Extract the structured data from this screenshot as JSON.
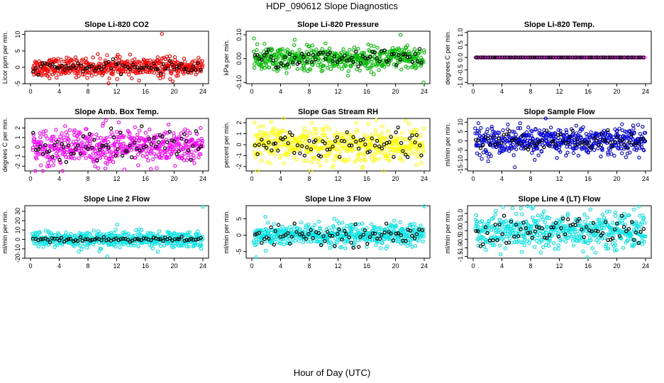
{
  "title": "HDP_090612  Slope Diagnostics",
  "xlabel": "Hour of Day (UTC)",
  "chart_data": [
    {
      "type": "scatter",
      "title": "Slope Li-820 CO2",
      "ylabel": "Licor ppm per min.",
      "xlim": [
        0,
        24
      ],
      "ylim": [
        -5,
        11
      ],
      "xticks": [
        0,
        4,
        8,
        12,
        16,
        20,
        24
      ],
      "yticks": [
        -5,
        0,
        5,
        10
      ],
      "color": "#ff0000",
      "spread": 1.4,
      "n": 520,
      "black_spread": 0.8,
      "outliers": [
        [
          18.3,
          10.2
        ],
        [
          19.8,
          -4.3
        ]
      ]
    },
    {
      "type": "scatter",
      "title": "Slope Li-820 Pressure",
      "ylabel": "kPa per min.",
      "xlim": [
        0,
        24
      ],
      "ylim": [
        -0.105,
        0.115
      ],
      "xticks": [
        0,
        4,
        8,
        12,
        16,
        20,
        24
      ],
      "yticks": [
        -0.1,
        0.0,
        0.1
      ],
      "ytick_labels": [
        "-0.10",
        "0.00",
        "0.10"
      ],
      "color": "#00bb00",
      "spread": 0.025,
      "n": 520,
      "black_spread": 0.018,
      "outliers": [
        [
          0.3,
          0.085
        ],
        [
          23.9,
          -0.1
        ],
        [
          20.7,
          0.1
        ]
      ]
    },
    {
      "type": "scatter",
      "title": "Slope Li-820 Temp.",
      "ylabel": "degrees C per min.",
      "xlim": [
        0,
        24
      ],
      "ylim": [
        -1.05,
        1.05
      ],
      "xticks": [
        0,
        4,
        8,
        12,
        16,
        20,
        24
      ],
      "yticks": [
        -1.0,
        -0.5,
        0.0,
        0.5,
        1.0
      ],
      "ytick_labels": [
        "-1.0",
        "-0.5",
        "0.0",
        "0.5",
        "1.0"
      ],
      "color": "#ff00ff",
      "spread": 0.0,
      "n": 160,
      "black_spread": 0.0,
      "outliers": []
    },
    {
      "type": "scatter",
      "title": "Slope Amb. Box Temp.",
      "ylabel": "degrees C per min.",
      "xlim": [
        0,
        24
      ],
      "ylim": [
        -2.5,
        3.0
      ],
      "xticks": [
        0,
        4,
        8,
        12,
        16,
        20,
        24
      ],
      "yticks": [
        -2,
        -1,
        0,
        1,
        2
      ],
      "color": "#ff00ff",
      "spread": 0.95,
      "n": 520,
      "black_spread": 0.9,
      "outliers": [
        [
          10.5,
          2.8
        ]
      ]
    },
    {
      "type": "scatter",
      "title": "Slope Gas Stream RH",
      "ylabel": "percent per min.",
      "xlim": [
        0,
        24
      ],
      "ylim": [
        -2.4,
        2.4
      ],
      "xticks": [
        0,
        4,
        8,
        12,
        16,
        20,
        24
      ],
      "yticks": [
        -2,
        -1,
        0,
        1,
        2
      ],
      "color": "#ffff00",
      "spread": 0.8,
      "n": 520,
      "black_spread": 0.75,
      "outliers": []
    },
    {
      "type": "scatter",
      "title": "Slope Sample Flow",
      "ylabel": "ml/min per min.",
      "xlim": [
        0,
        24
      ],
      "ylim": [
        -16,
        12
      ],
      "xticks": [
        0,
        4,
        8,
        12,
        16,
        20,
        24
      ],
      "yticks": [
        -15,
        -10,
        -5,
        0,
        5,
        10
      ],
      "color": "#0000dd",
      "spread": 3.6,
      "n": 520,
      "black_spread": 2.5,
      "outliers": [
        [
          5.8,
          -14
        ]
      ]
    },
    {
      "type": "scatter",
      "title": "Slope Line 2 Flow",
      "ylabel": "ml/min per min.",
      "xlim": [
        0,
        24
      ],
      "ylim": [
        -20,
        36
      ],
      "xticks": [
        0,
        4,
        8,
        12,
        16,
        20,
        24
      ],
      "yticks": [
        -20,
        -10,
        0,
        10,
        20,
        30
      ],
      "color": "#00e5e5",
      "spread": 4.2,
      "n": 520,
      "black_spread": 1.2,
      "outliers": [
        [
          24,
          35
        ],
        [
          10.7,
          -18
        ]
      ]
    },
    {
      "type": "scatter",
      "title": "Slope Line 3 Flow",
      "ylabel": "ml/min per min.",
      "xlim": [
        0,
        24
      ],
      "ylim": [
        -7,
        9
      ],
      "xticks": [
        0,
        4,
        8,
        12,
        16,
        20,
        24
      ],
      "yticks": [
        -5,
        0,
        5
      ],
      "color": "#00e5e5",
      "spread": 1.7,
      "n": 520,
      "black_spread": 1.4,
      "outliers": [
        [
          24,
          8.8
        ],
        [
          0.6,
          -6.7
        ]
      ]
    },
    {
      "type": "scatter",
      "title": "Slope Line 4 (LT) Flow",
      "ylabel": "ml/min per min.",
      "xlim": [
        0,
        24
      ],
      "ylim": [
        -1.6,
        1.45
      ],
      "xticks": [
        0,
        4,
        8,
        12,
        16,
        20,
        24
      ],
      "yticks": [
        -1.5,
        -1.0,
        -0.5,
        0.0,
        0.5,
        1.0
      ],
      "ytick_labels": [
        "-1.5",
        "-1.0",
        "-0.5",
        "0.0",
        "0.5",
        "1.0"
      ],
      "color": "#00e5e5",
      "spread": 0.5,
      "n": 520,
      "black_spread": 0.45,
      "outliers": [
        [
          7.6,
          1.42
        ],
        [
          15.9,
          -1.55
        ]
      ]
    }
  ]
}
